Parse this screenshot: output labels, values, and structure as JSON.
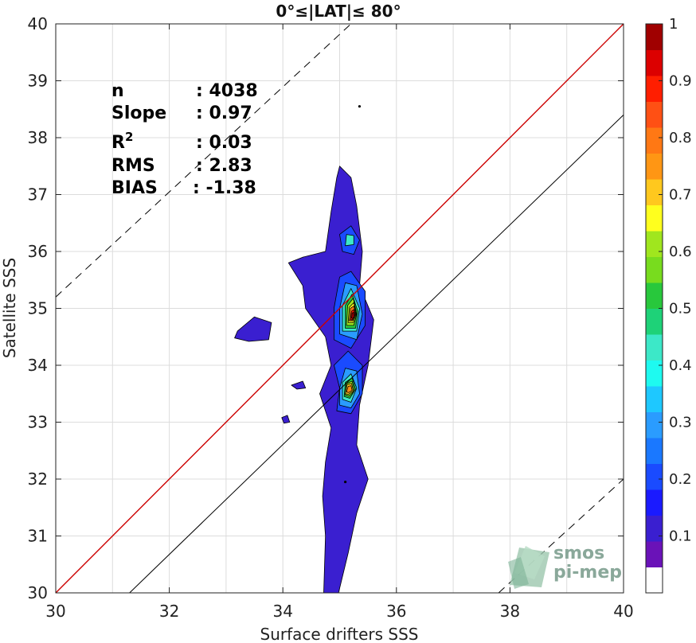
{
  "chart_data": {
    "type": "heatmap",
    "title": "0°≤|LAT|≤ 80°",
    "xlabel": "Surface drifters SSS",
    "ylabel": "Satellite SSS",
    "xlim": [
      30,
      40
    ],
    "ylim": [
      30,
      40
    ],
    "xticks": [
      "30",
      "32",
      "34",
      "36",
      "38",
      "40"
    ],
    "yticks": [
      "30",
      "31",
      "32",
      "33",
      "34",
      "35",
      "36",
      "37",
      "38",
      "39",
      "40"
    ],
    "grid": true,
    "stats": [
      {
        "label": "n",
        "value": ": 4038"
      },
      {
        "label": "Slope",
        "value": ": 0.97"
      },
      {
        "label": "R",
        "sup": "2",
        "value": ": 0.03"
      },
      {
        "label": "RMS",
        "value": ": 2.83"
      },
      {
        "label": "BIAS",
        "value": ": -1.38"
      }
    ],
    "reference_lines": [
      {
        "kind": "identity",
        "color": "#cc0000",
        "style": "solid",
        "points": [
          [
            30,
            30
          ],
          [
            40,
            40
          ]
        ]
      },
      {
        "kind": "fit",
        "color": "#000000",
        "style": "solid",
        "points": [
          [
            31.3,
            30
          ],
          [
            40,
            38.4
          ]
        ]
      },
      {
        "kind": "upper-bound",
        "color": "#000000",
        "style": "dashed",
        "points": [
          [
            30,
            35.2
          ],
          [
            35.2,
            40
          ]
        ]
      },
      {
        "kind": "lower-bound",
        "color": "#000000",
        "style": "dashed",
        "points": [
          [
            37.8,
            30
          ],
          [
            40,
            32
          ]
        ]
      }
    ],
    "density_contours": [
      {
        "level": 0.1,
        "color": "#3a1fd0",
        "polygon": [
          [
            34.72,
            30
          ],
          [
            34.75,
            31
          ],
          [
            34.7,
            31.7
          ],
          [
            34.75,
            32.3
          ],
          [
            34.85,
            32.9
          ],
          [
            34.65,
            33.5
          ],
          [
            34.85,
            34.0
          ],
          [
            34.75,
            34.5
          ],
          [
            34.4,
            35.0
          ],
          [
            34.35,
            35.4
          ],
          [
            34.1,
            35.8
          ],
          [
            34.35,
            35.9
          ],
          [
            34.75,
            36.0
          ],
          [
            34.85,
            36.7
          ],
          [
            34.95,
            37.3
          ],
          [
            35.0,
            37.5
          ],
          [
            35.2,
            37.3
          ],
          [
            35.3,
            36.8
          ],
          [
            35.4,
            36.0
          ],
          [
            35.35,
            35.4
          ],
          [
            35.6,
            34.8
          ],
          [
            35.5,
            34.0
          ],
          [
            35.35,
            33.3
          ],
          [
            35.3,
            32.6
          ],
          [
            35.5,
            32.0
          ],
          [
            35.3,
            31.4
          ],
          [
            35.15,
            30.7
          ],
          [
            34.98,
            30
          ]
        ]
      },
      {
        "level": 0.1,
        "color": "#3a1fd0",
        "polygon": [
          [
            33.2,
            34.6
          ],
          [
            33.5,
            34.85
          ],
          [
            33.8,
            34.75
          ],
          [
            33.75,
            34.45
          ],
          [
            33.4,
            34.42
          ],
          [
            33.15,
            34.48
          ]
        ]
      },
      {
        "level": 0.1,
        "color": "#3a1fd0",
        "polygon": [
          [
            34.15,
            33.65
          ],
          [
            34.35,
            33.72
          ],
          [
            34.4,
            33.6
          ],
          [
            34.25,
            33.58
          ]
        ]
      },
      {
        "level": 0.1,
        "color": "#3a1fd0",
        "polygon": [
          [
            33.98,
            33.08
          ],
          [
            34.08,
            33.12
          ],
          [
            34.12,
            33.0
          ],
          [
            34.02,
            32.98
          ]
        ]
      },
      {
        "level": 0.2,
        "color": "#1a4bff",
        "polygon": [
          [
            34.95,
            33.2
          ],
          [
            35.0,
            33.6
          ],
          [
            34.9,
            34.0
          ],
          [
            35.15,
            34.25
          ],
          [
            35.4,
            34.0
          ],
          [
            35.4,
            33.5
          ],
          [
            35.2,
            33.15
          ]
        ]
      },
      {
        "level": 0.2,
        "color": "#1a4bff",
        "polygon": [
          [
            34.9,
            34.45
          ],
          [
            34.9,
            35.0
          ],
          [
            35.0,
            35.55
          ],
          [
            35.2,
            35.65
          ],
          [
            35.45,
            35.3
          ],
          [
            35.45,
            34.7
          ],
          [
            35.2,
            34.3
          ]
        ]
      },
      {
        "level": 0.2,
        "color": "#1a4bff",
        "polygon": [
          [
            35.05,
            36.0
          ],
          [
            35.0,
            36.3
          ],
          [
            35.2,
            36.45
          ],
          [
            35.35,
            36.2
          ],
          [
            35.25,
            35.95
          ]
        ]
      },
      {
        "level": 0.3,
        "color": "#2a9cff",
        "polygon": [
          [
            35.0,
            33.3
          ],
          [
            35.0,
            33.6
          ],
          [
            35.1,
            33.95
          ],
          [
            35.3,
            33.9
          ],
          [
            35.35,
            33.5
          ],
          [
            35.2,
            33.25
          ]
        ]
      },
      {
        "level": 0.3,
        "color": "#2a9cff",
        "polygon": [
          [
            35.0,
            34.55
          ],
          [
            35.0,
            35.0
          ],
          [
            35.1,
            35.45
          ],
          [
            35.3,
            35.4
          ],
          [
            35.4,
            34.9
          ],
          [
            35.3,
            34.45
          ]
        ]
      },
      {
        "level": 0.4,
        "color": "#3ce8c8",
        "polygon": [
          [
            35.05,
            33.4
          ],
          [
            35.05,
            33.7
          ],
          [
            35.2,
            33.85
          ],
          [
            35.3,
            33.6
          ],
          [
            35.2,
            33.35
          ]
        ]
      },
      {
        "level": 0.4,
        "color": "#3ce8c8",
        "polygon": [
          [
            35.05,
            34.6
          ],
          [
            35.05,
            35.05
          ],
          [
            35.2,
            35.35
          ],
          [
            35.35,
            35.0
          ],
          [
            35.3,
            34.6
          ]
        ]
      },
      {
        "level": 0.4,
        "color": "#3ce8c8",
        "polygon": [
          [
            35.1,
            36.1
          ],
          [
            35.12,
            36.3
          ],
          [
            35.25,
            36.28
          ],
          [
            35.25,
            36.12
          ]
        ]
      },
      {
        "level": 0.5,
        "color": "#28c83c",
        "polygon": [
          [
            35.08,
            33.45
          ],
          [
            35.1,
            33.7
          ],
          [
            35.22,
            33.78
          ],
          [
            35.28,
            33.58
          ],
          [
            35.18,
            33.42
          ]
        ]
      },
      {
        "level": 0.5,
        "color": "#28c83c",
        "polygon": [
          [
            35.1,
            34.65
          ],
          [
            35.1,
            35.05
          ],
          [
            35.22,
            35.25
          ],
          [
            35.32,
            34.95
          ],
          [
            35.28,
            34.65
          ]
        ]
      },
      {
        "level": 0.6,
        "color": "#a0e61e",
        "polygon": [
          [
            35.12,
            34.7
          ],
          [
            35.14,
            35.05
          ],
          [
            35.24,
            35.18
          ],
          [
            35.3,
            34.9
          ],
          [
            35.25,
            34.7
          ]
        ]
      },
      {
        "level": 0.6,
        "color": "#a0e61e",
        "polygon": [
          [
            35.1,
            33.48
          ],
          [
            35.12,
            33.68
          ],
          [
            35.22,
            33.72
          ],
          [
            35.26,
            33.55
          ],
          [
            35.17,
            33.46
          ]
        ]
      },
      {
        "level": 0.7,
        "color": "#fff21e",
        "polygon": [
          [
            35.15,
            34.75
          ],
          [
            35.17,
            35.02
          ],
          [
            35.25,
            35.1
          ],
          [
            35.29,
            34.9
          ],
          [
            35.24,
            34.75
          ]
        ]
      },
      {
        "level": 0.7,
        "color": "#ffc81e",
        "polygon": [
          [
            35.1,
            33.5
          ],
          [
            35.13,
            33.66
          ],
          [
            35.21,
            33.68
          ],
          [
            35.24,
            33.55
          ],
          [
            35.16,
            33.49
          ]
        ]
      },
      {
        "level": 0.8,
        "color": "#ff7814",
        "polygon": [
          [
            35.17,
            34.78
          ],
          [
            35.19,
            35.0
          ],
          [
            35.25,
            35.04
          ],
          [
            35.28,
            34.9
          ],
          [
            35.23,
            34.78
          ]
        ]
      },
      {
        "level": 0.8,
        "color": "#ff8c14",
        "polygon": [
          [
            35.12,
            33.53
          ],
          [
            35.15,
            33.63
          ],
          [
            35.2,
            33.64
          ],
          [
            35.22,
            33.56
          ],
          [
            35.16,
            33.52
          ]
        ]
      },
      {
        "level": 0.9,
        "color": "#ff1e00",
        "polygon": [
          [
            35.19,
            34.8
          ],
          [
            35.21,
            34.95
          ],
          [
            35.25,
            34.98
          ],
          [
            35.27,
            34.88
          ],
          [
            35.23,
            34.8
          ]
        ]
      },
      {
        "level": 1.0,
        "color": "#a00000",
        "polygon": [
          [
            35.21,
            34.83
          ],
          [
            35.22,
            34.92
          ],
          [
            35.25,
            34.93
          ],
          [
            35.26,
            34.86
          ],
          [
            35.23,
            34.82
          ]
        ]
      }
    ],
    "stray_points": [
      [
        35.35,
        38.55
      ],
      [
        35.1,
        31.95
      ]
    ],
    "colorbar": {
      "ticks": [
        "0.1",
        "0.2",
        "0.3",
        "0.4",
        "0.5",
        "0.6",
        "0.7",
        "0.8",
        "0.9",
        "1"
      ],
      "range": [
        0,
        1
      ],
      "colors": [
        "#ffffff",
        "#6a12b8",
        "#3a1fd0",
        "#1a1aff",
        "#1a4bff",
        "#1a78ff",
        "#2a9cff",
        "#1ec8ff",
        "#1efaf0",
        "#3ce8c8",
        "#1ed278",
        "#28c83c",
        "#78dc1e",
        "#a0e61e",
        "#ffff1e",
        "#ffc81e",
        "#ff9614",
        "#ff7814",
        "#ff5014",
        "#ff1e00",
        "#dc0000",
        "#a00000"
      ]
    }
  },
  "logo": {
    "line1": "smos",
    "line2": "pi-mep"
  }
}
